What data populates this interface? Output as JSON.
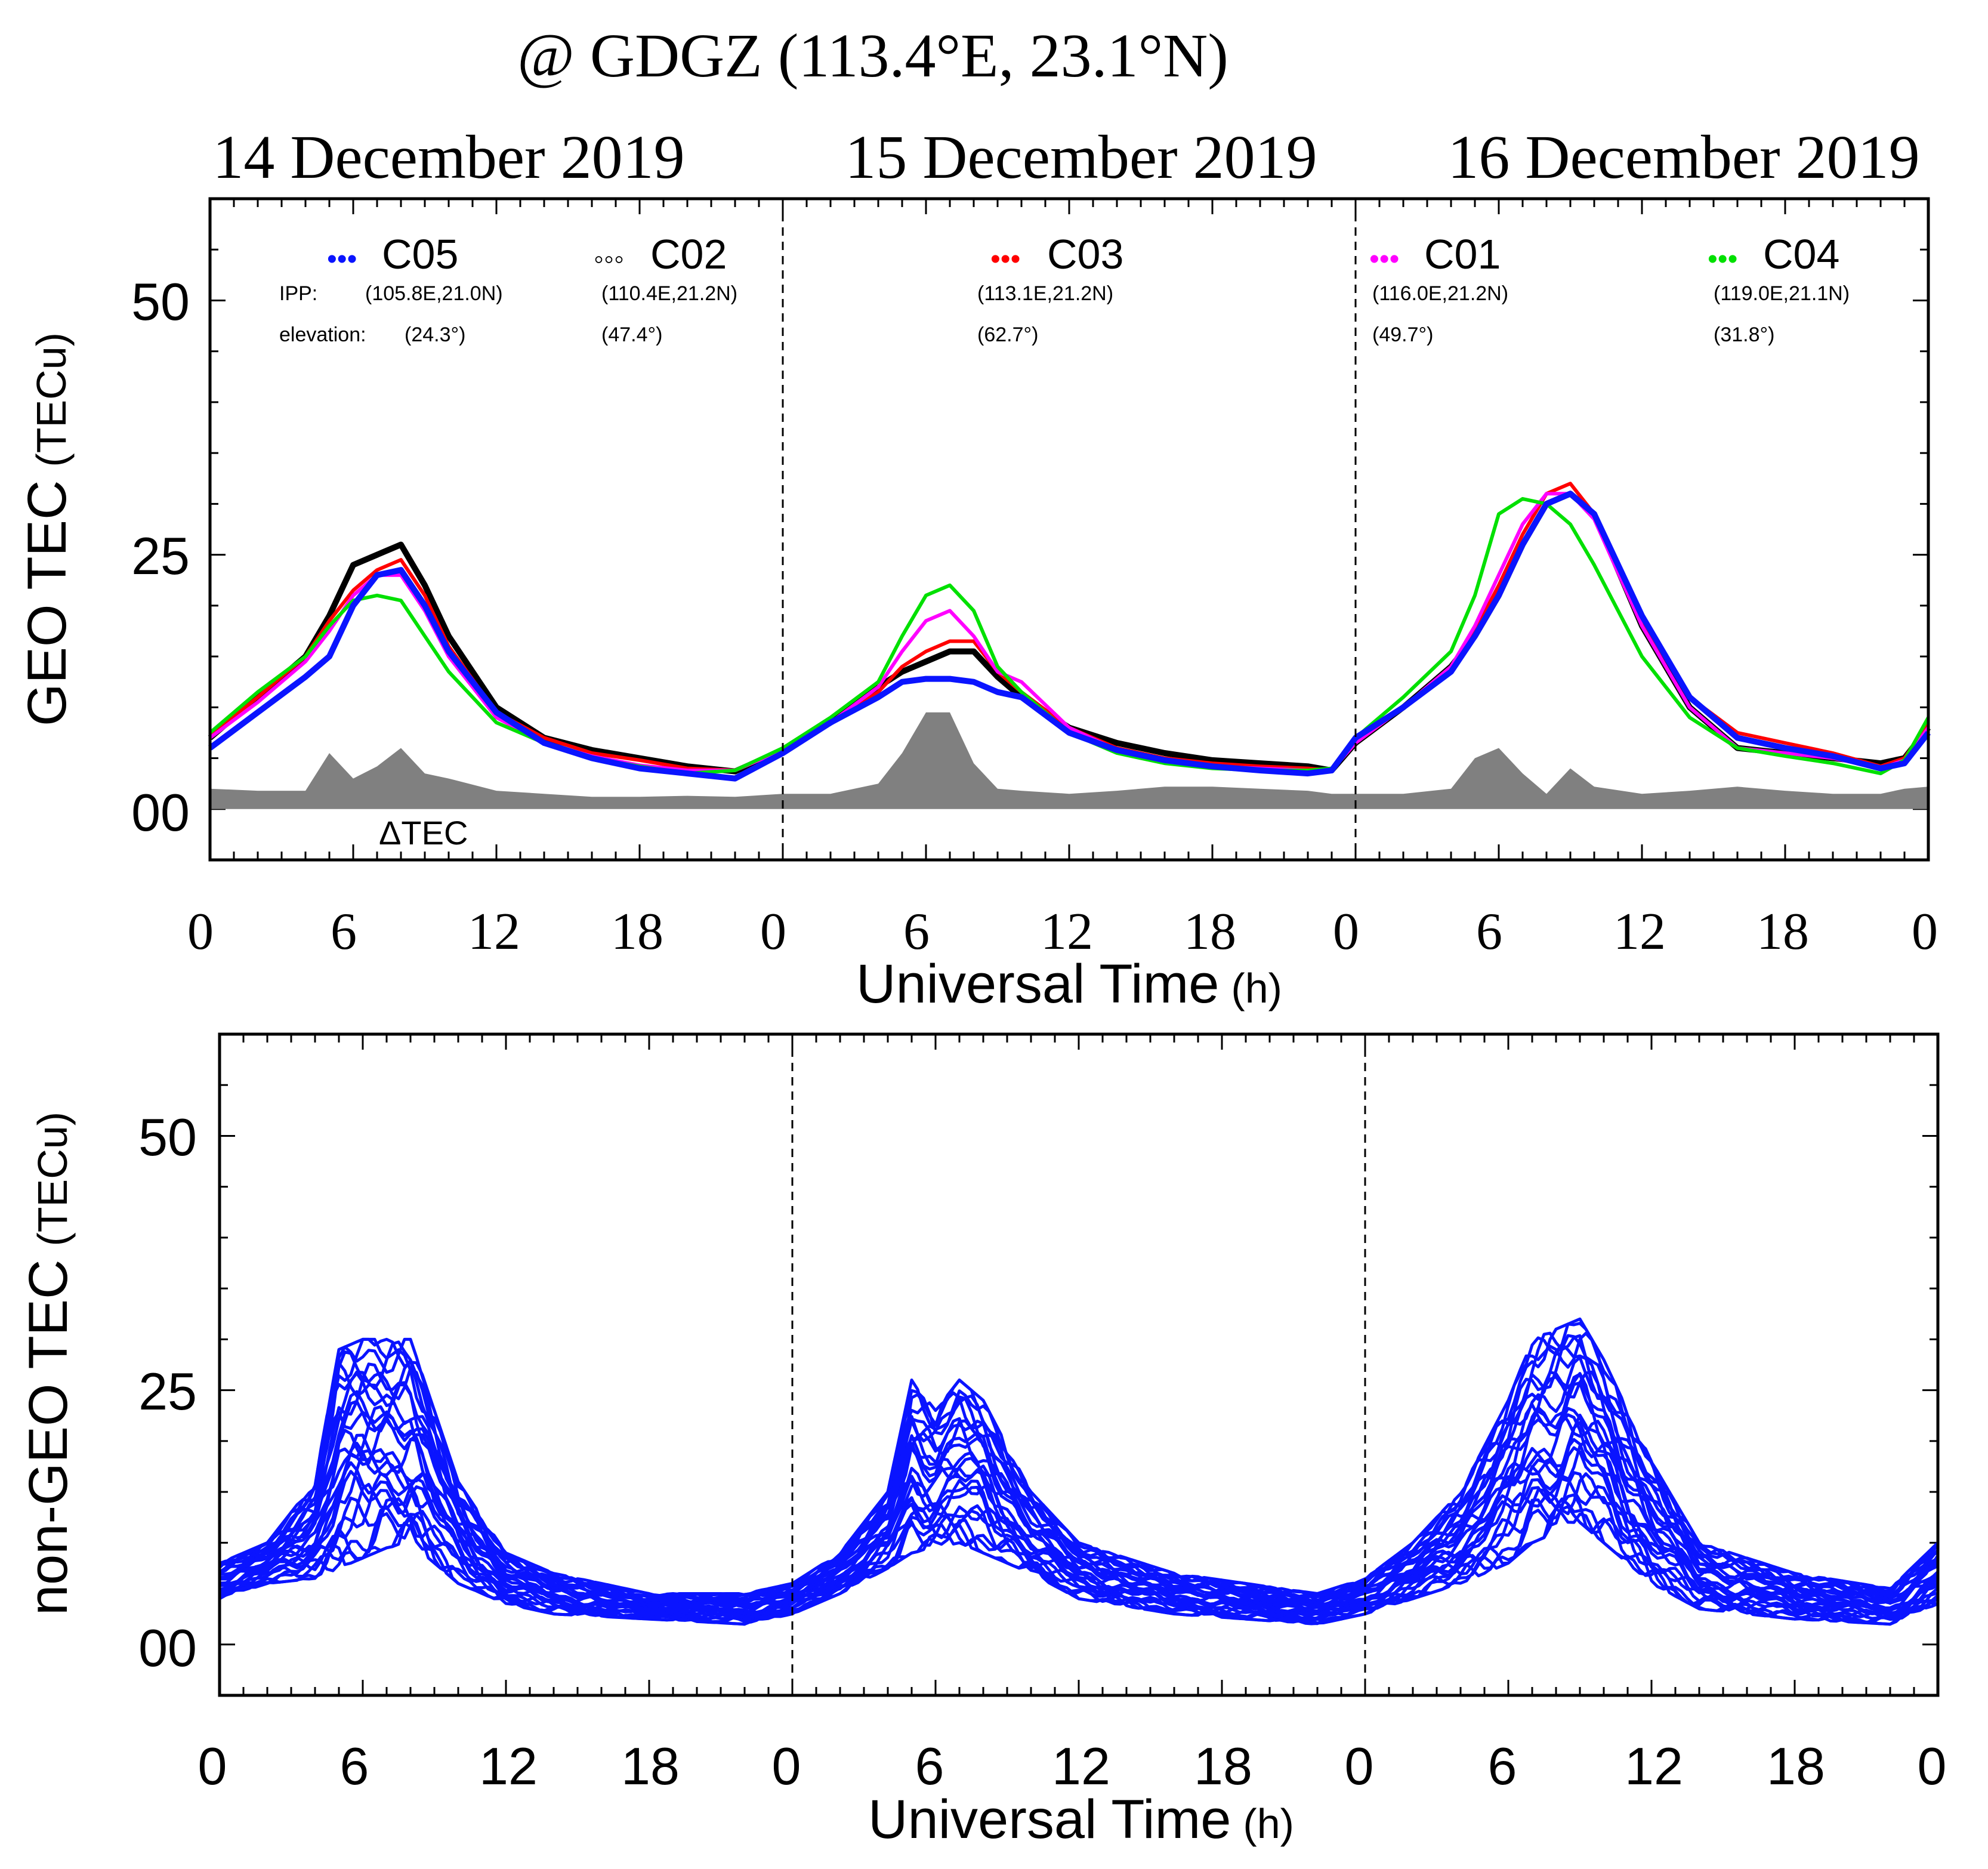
{
  "header": {
    "title": "@ GDGZ (113.4°E, 23.1°N)",
    "days": [
      "14 December 2019",
      "15 December 2019",
      "16 December 2019"
    ]
  },
  "top_panel": {
    "ylabel_main": "GEO TEC",
    "ylabel_unit": "(TECu)",
    "xlabel_main": "Universal Time",
    "xlabel_unit": "(h)",
    "ytick_labels": [
      "00",
      "25",
      "50"
    ],
    "xtick_labels": [
      "0",
      "6",
      "12",
      "18",
      "0",
      "6",
      "12",
      "18",
      "0",
      "6",
      "12",
      "18",
      "0"
    ],
    "ipp_prefix": "IPP:",
    "elevation_prefix": "elevation:",
    "delta_label": "ΔTEC",
    "legend": [
      {
        "id": "C05",
        "name": "C05",
        "marker": "•••",
        "ipp": "(105.8E,21.0N)",
        "elev": "(24.3°)",
        "color": "#0a14ff"
      },
      {
        "id": "C02",
        "name": "C02",
        "marker": "◦◦◦",
        "ipp": "(110.4E,21.2N)",
        "elev": "(47.4°)",
        "color": "#000000"
      },
      {
        "id": "C03",
        "name": "C03",
        "marker": "•••",
        "ipp": "(113.1E,21.2N)",
        "elev": "(62.7°)",
        "color": "#ff0000"
      },
      {
        "id": "C01",
        "name": "C01",
        "marker": "•••",
        "ipp": "(116.0E,21.2N)",
        "elev": "(49.7°)",
        "color": "#ff00ff"
      },
      {
        "id": "C04",
        "name": "C04",
        "marker": "•••",
        "ipp": "(119.0E,21.1N)",
        "elev": "(31.8°)",
        "color": "#00e000"
      }
    ]
  },
  "bottom_panel": {
    "ylabel_main": "non-GEO TEC",
    "ylabel_unit": "(TECu)",
    "xlabel_main": "Universal Time",
    "xlabel_unit": "(h)",
    "ytick_labels": [
      "00",
      "25",
      "50"
    ],
    "xtick_labels": [
      "0",
      "6",
      "12",
      "18",
      "0",
      "6",
      "12",
      "18",
      "0",
      "6",
      "12",
      "18",
      "0"
    ]
  },
  "chart_data": [
    {
      "type": "line",
      "title": "GEO TEC @ GDGZ (113.4°E, 23.1°N)",
      "xlabel": "Universal Time (h)",
      "ylabel": "GEO TEC (TECu)",
      "xlim": [
        0,
        72
      ],
      "ylim": [
        -5,
        60
      ],
      "x": [
        0,
        2,
        4,
        5,
        6,
        7,
        8,
        9,
        10,
        12,
        14,
        16,
        18,
        20,
        22,
        24,
        26,
        28,
        29,
        30,
        31,
        32,
        33,
        34,
        36,
        38,
        40,
        42,
        44,
        46,
        47,
        48,
        50,
        52,
        53,
        54,
        55,
        56,
        57,
        58,
        60,
        62,
        64,
        66,
        68,
        70,
        71,
        72
      ],
      "series": [
        {
          "name": "C02",
          "color": "#000000",
          "values": [
            7,
            11,
            15,
            19,
            24,
            25,
            26,
            22,
            17,
            10,
            7,
            5.8,
            5,
            4.2,
            3.7,
            5.8,
            8.5,
            12,
            13.5,
            14.5,
            15.5,
            15.5,
            13,
            11,
            8,
            6.5,
            5.5,
            4.8,
            4.5,
            4.2,
            3.8,
            6.5,
            10,
            14,
            17,
            21,
            26,
            30,
            31,
            29,
            18,
            10,
            6,
            5.5,
            5,
            4.5,
            5,
            8
          ]
        },
        {
          "name": "C03",
          "color": "#ff0000",
          "values": [
            7.2,
            11,
            15,
            18.5,
            21.5,
            23.5,
            24.5,
            21,
            16,
            9.5,
            7,
            5.5,
            4.8,
            4,
            3.8,
            5.8,
            8.5,
            11.5,
            14,
            15.5,
            16.5,
            16.5,
            13.5,
            11.5,
            8,
            6,
            5,
            4.5,
            4.2,
            4,
            3.8,
            6.5,
            10,
            14,
            17.5,
            22,
            27,
            31,
            32,
            29,
            18.5,
            11,
            7.5,
            6.5,
            5.5,
            4.2,
            5,
            8.5
          ]
        },
        {
          "name": "C01",
          "color": "#ff00ff",
          "values": [
            7,
            10.5,
            14.5,
            17.5,
            21,
            23,
            23,
            19.5,
            15,
            9,
            6.5,
            5.2,
            4.3,
            3.8,
            3.8,
            5.8,
            8.5,
            12,
            15.5,
            18.5,
            19.5,
            17,
            13.5,
            12.5,
            8,
            5.8,
            4.8,
            4.2,
            4,
            3.8,
            3.8,
            6.5,
            10,
            14,
            18,
            23,
            28,
            31,
            31,
            28.5,
            18,
            10,
            6,
            5.5,
            5,
            4,
            4.8,
            8
          ]
        },
        {
          "name": "C04",
          "color": "#00e000",
          "values": [
            7.5,
            11.5,
            15,
            18,
            20.5,
            21,
            20.5,
            17,
            13.5,
            8.5,
            6.5,
            5,
            4.2,
            3.5,
            3.8,
            6,
            9,
            12.5,
            17,
            21,
            22,
            19.5,
            14,
            11.5,
            7.5,
            5.5,
            4.5,
            4,
            3.8,
            3.8,
            4,
            7,
            11,
            15.5,
            21,
            29,
            30.5,
            30,
            28,
            24,
            15,
            9,
            6,
            5.2,
            4.5,
            3.5,
            4.8,
            9
          ]
        },
        {
          "name": "C05",
          "color": "#0a14ff",
          "values": [
            6,
            9.5,
            13,
            15,
            20,
            23,
            23.5,
            20,
            15.5,
            9.5,
            6.5,
            5,
            4,
            3.5,
            3,
            5.5,
            8.5,
            11,
            12.5,
            12.8,
            12.8,
            12.5,
            11.5,
            11,
            7.5,
            5.8,
            4.8,
            4.2,
            3.8,
            3.5,
            3.8,
            7,
            10,
            13.5,
            17,
            21,
            26,
            30,
            31,
            29,
            19,
            11,
            7,
            6,
            5.2,
            4,
            4.5,
            7.5
          ]
        },
        {
          "name": "ΔTEC",
          "color": "#808080",
          "values": [
            2,
            1.8,
            1.8,
            5.5,
            3,
            4.2,
            6,
            3.5,
            3,
            1.8,
            1.5,
            1.2,
            1.2,
            1.3,
            1.2,
            1.5,
            1.5,
            2.5,
            5.5,
            9.5,
            9.5,
            4.5,
            2,
            1.8,
            1.5,
            1.8,
            2.2,
            2.2,
            2,
            1.8,
            1.5,
            1.5,
            1.5,
            2,
            5,
            6,
            3.5,
            1.5,
            4,
            2.2,
            1.5,
            1.8,
            2.2,
            1.8,
            1.5,
            1.5,
            2,
            2.2
          ]
        }
      ]
    },
    {
      "type": "line",
      "title": "non-GEO TEC",
      "xlabel": "Universal Time (h)",
      "ylabel": "non-GEO TEC (TECu)",
      "xlim": [
        0,
        72
      ],
      "ylim": [
        -5,
        60
      ],
      "series_color": "#0a14ff",
      "envelope": {
        "x": [
          0,
          2,
          4,
          5,
          6,
          7,
          8,
          10,
          12,
          14,
          18,
          22,
          24,
          26,
          28,
          29,
          30,
          31,
          32,
          34,
          36,
          40,
          46,
          48,
          50,
          52,
          54,
          55,
          56,
          57,
          58,
          60,
          62,
          66,
          70,
          72
        ],
        "upper": [
          8,
          10,
          16,
          29,
          30,
          30,
          30,
          16,
          9,
          7,
          5,
          5,
          6,
          9,
          15,
          26,
          23,
          26,
          24,
          15,
          10,
          7,
          5,
          6.5,
          10,
          15,
          24,
          30,
          31,
          32,
          28,
          18,
          10,
          7,
          5.5,
          10
        ],
        "lower": [
          4.5,
          6,
          6.5,
          7.5,
          8.5,
          9.5,
          10,
          6,
          4,
          3,
          2.5,
          2,
          3,
          5,
          7.5,
          9,
          9.5,
          10,
          9,
          7,
          4.5,
          3,
          2,
          3,
          4.5,
          6,
          8,
          10,
          11,
          12,
          10,
          6,
          3.5,
          2.5,
          2,
          4
        ]
      }
    }
  ]
}
